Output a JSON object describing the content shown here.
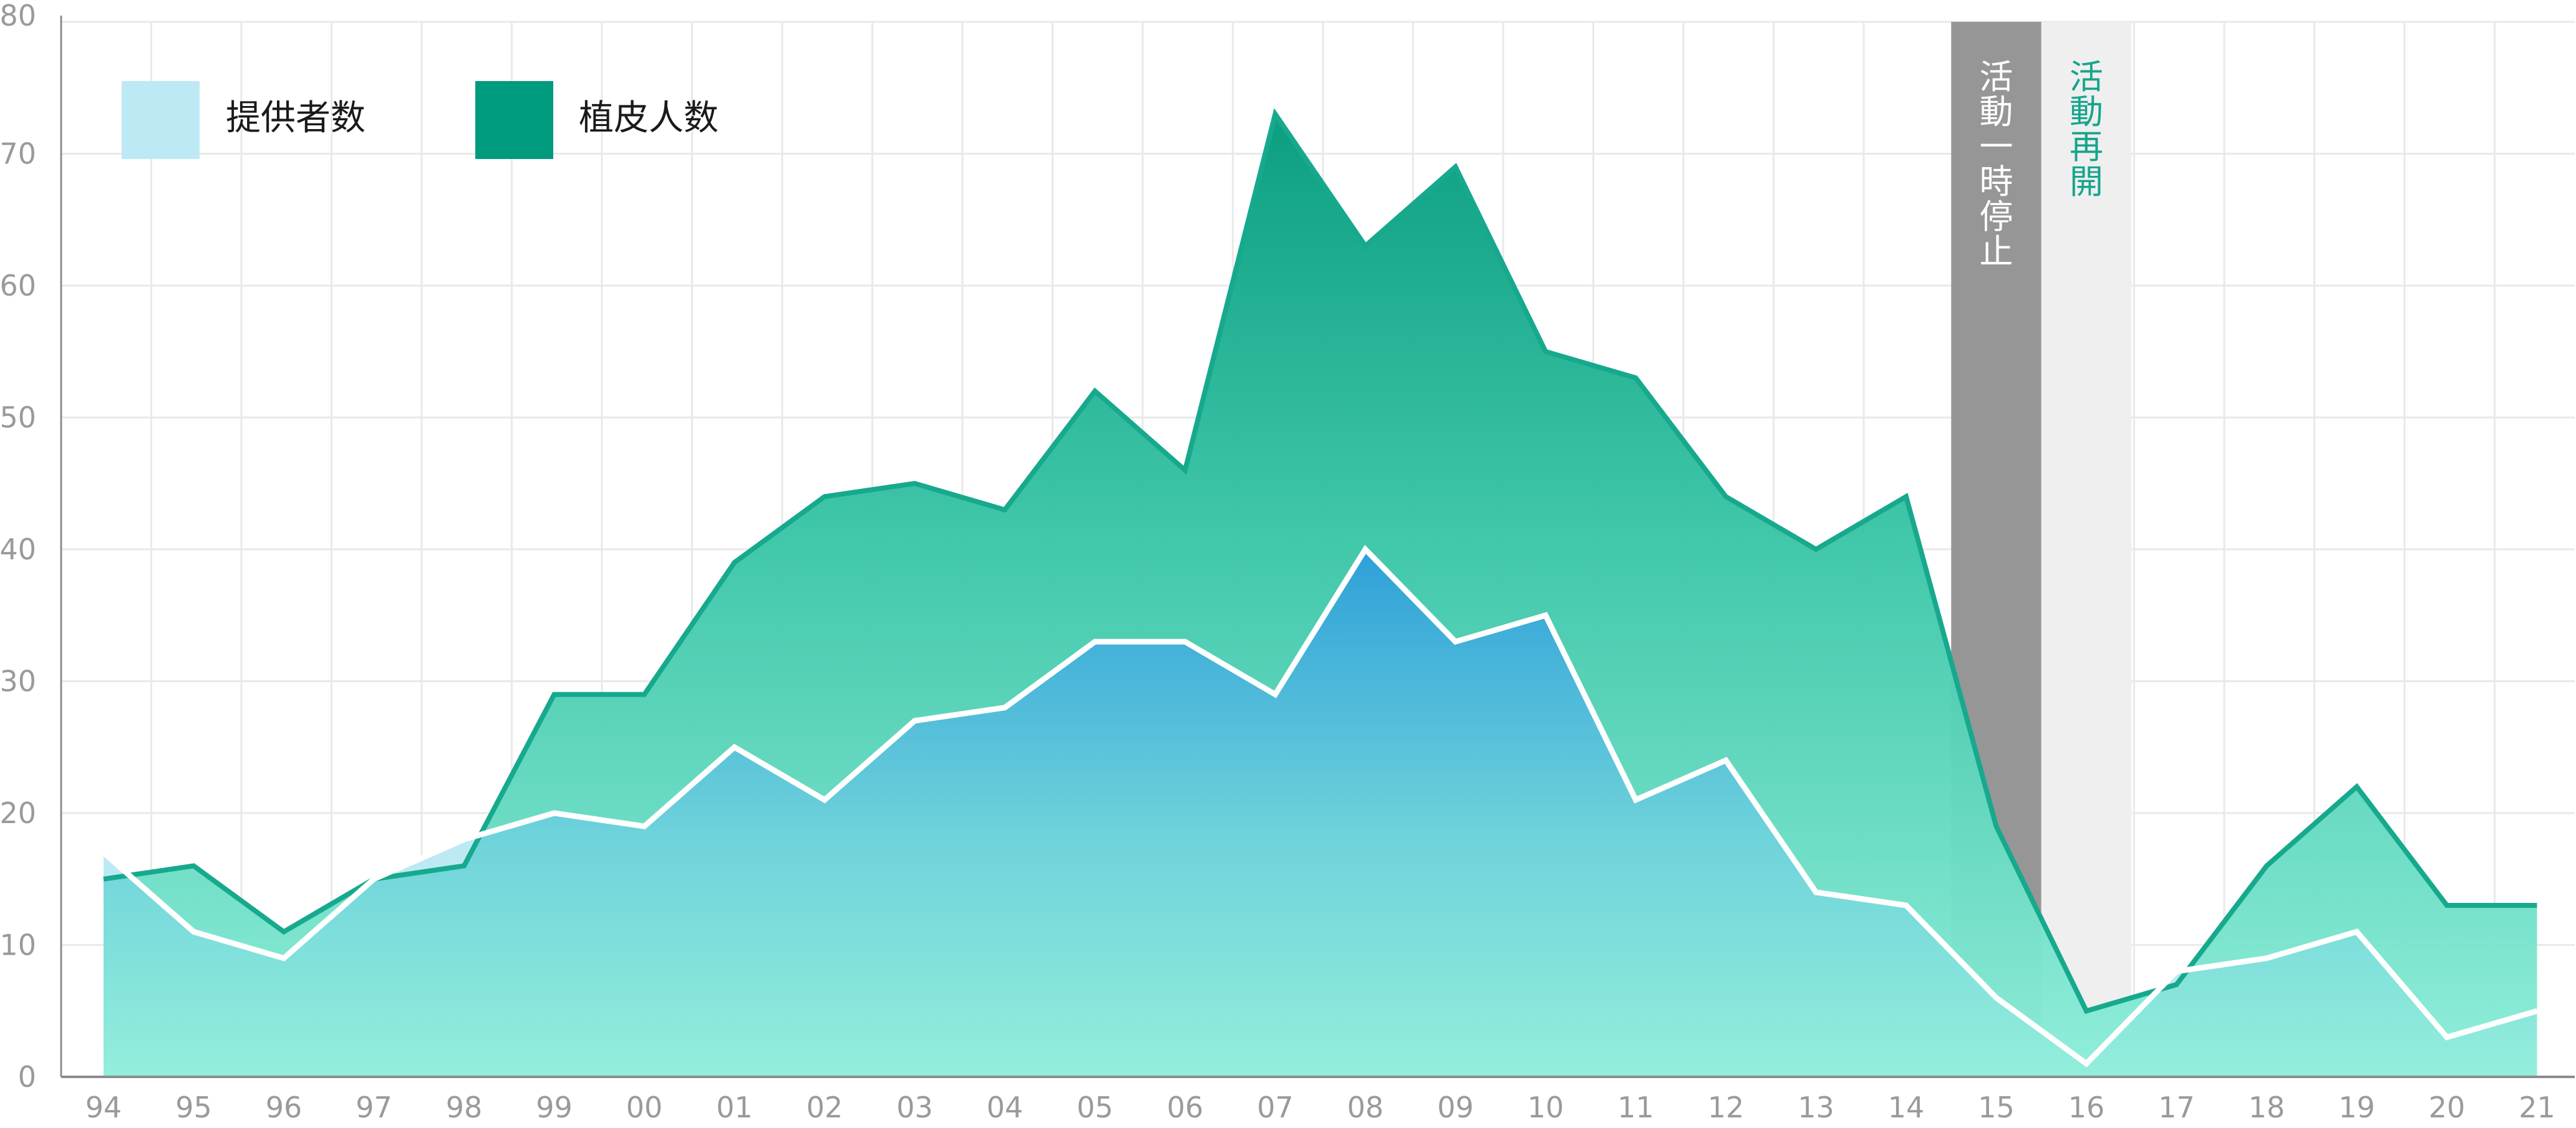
{
  "chart_data": {
    "type": "area",
    "categories": [
      "94",
      "95",
      "96",
      "97",
      "98",
      "99",
      "00",
      "01",
      "02",
      "03",
      "04",
      "05",
      "06",
      "07",
      "08",
      "09",
      "10",
      "11",
      "12",
      "13",
      "14",
      "15",
      "16",
      "17",
      "18",
      "19",
      "20",
      "21"
    ],
    "series": [
      {
        "name": "提供者数",
        "values": [
          17,
          11,
          9,
          15,
          18,
          20,
          19,
          25,
          21,
          27,
          28,
          33,
          33,
          29,
          40,
          33,
          35,
          21,
          24,
          14,
          13,
          6,
          1,
          8,
          9,
          11,
          3,
          5
        ]
      },
      {
        "name": "植皮人数",
        "values": [
          15,
          16,
          11,
          15,
          16,
          29,
          29,
          39,
          44,
          45,
          43,
          52,
          46,
          73,
          63,
          69,
          55,
          53,
          44,
          40,
          44,
          19,
          5,
          7,
          16,
          22,
          13,
          13
        ]
      }
    ],
    "ylim": [
      0,
      80
    ],
    "yticks": [
      "0",
      "10",
      "20",
      "30",
      "40",
      "50",
      "60",
      "70",
      "80"
    ],
    "grid": true,
    "legend": "top-left",
    "periods": [
      {
        "label": "活動一時停止",
        "from": "15",
        "kind": "pause"
      },
      {
        "label": "活動再開",
        "from": "16",
        "kind": "resume"
      }
    ]
  },
  "colors": {
    "provider_fill": "#bde9f5",
    "patient_line": "#17a98e",
    "patient_legend": "#009a7e",
    "provider_line": "#ffffff",
    "pause_band": "#969696",
    "resume_band": "#efefef",
    "pause_text": "#ffffff",
    "resume_text": "#16a58c",
    "grid": "#e9e9e9",
    "axis": "#8c8c8c"
  }
}
